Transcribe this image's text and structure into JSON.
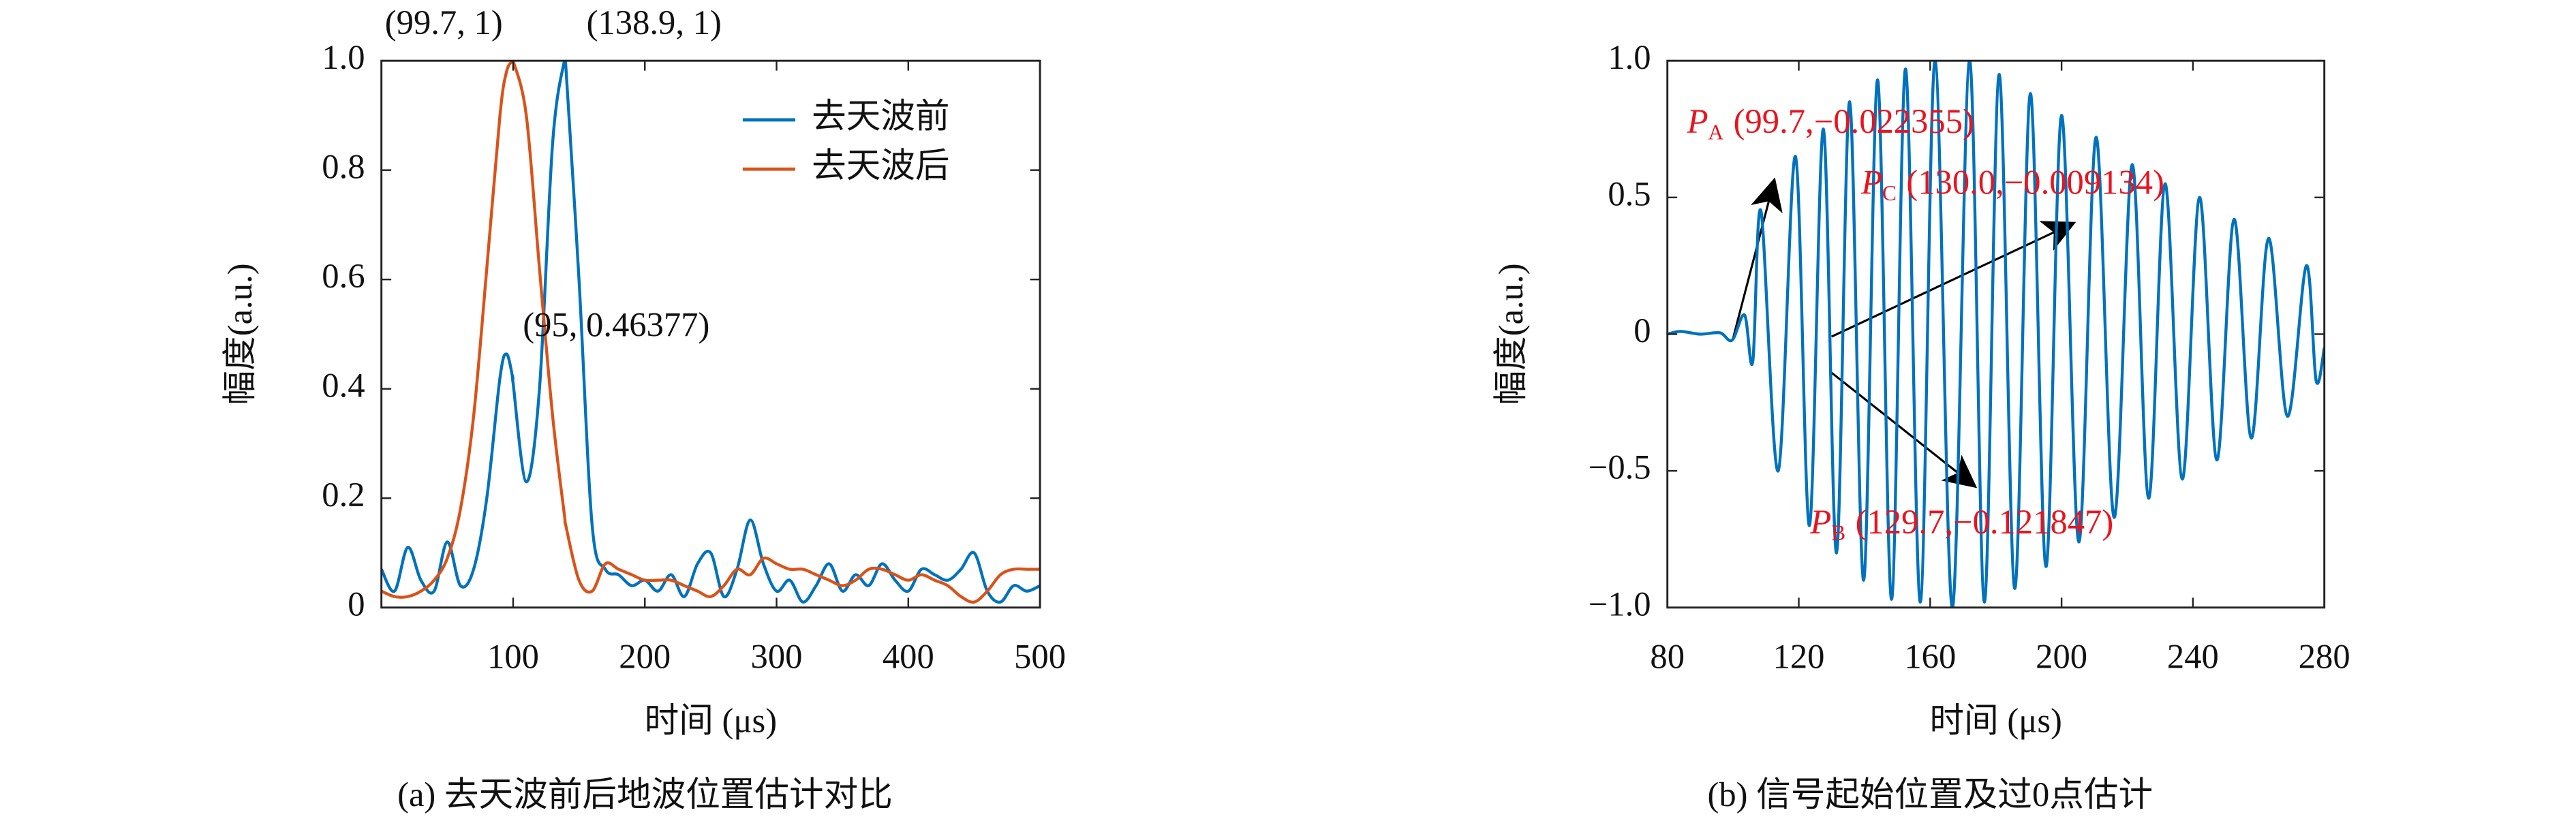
{
  "chart_data": [
    {
      "type": "line",
      "caption": "(a) 去天波前后地波位置估计对比",
      "xlabel": "时间 (μs)",
      "ylabel": "幅度(a.u.)",
      "x": [
        0,
        10,
        20,
        30,
        40,
        50,
        60,
        70,
        80,
        90,
        95,
        99.7,
        100,
        110,
        120,
        130,
        138.9,
        140,
        150,
        160,
        170,
        180,
        190,
        200,
        210,
        220,
        230,
        240,
        250,
        260,
        270,
        280,
        290,
        300,
        310,
        320,
        330,
        340,
        350,
        360,
        370,
        380,
        390,
        400,
        410,
        420,
        430,
        440,
        450,
        460,
        470,
        480,
        490,
        500
      ],
      "series": [
        {
          "name": "去天波前",
          "color": "#0072bd",
          "values": [
            0.07,
            0.03,
            0.11,
            0.05,
            0.03,
            0.12,
            0.04,
            0.07,
            0.2,
            0.42,
            0.46377,
            0.42,
            0.41,
            0.23,
            0.4,
            0.85,
            1,
            0.99,
            0.6,
            0.15,
            0.07,
            0.06,
            0.04,
            0.05,
            0.03,
            0.06,
            0.02,
            0.08,
            0.1,
            0.02,
            0.07,
            0.16,
            0.08,
            0.03,
            0.05,
            0.01,
            0.04,
            0.08,
            0.03,
            0.06,
            0.04,
            0.08,
            0.05,
            0.03,
            0.07,
            0.06,
            0.05,
            0.07,
            0.1,
            0.03,
            0.01,
            0.04,
            0.03,
            0.04
          ]
        },
        {
          "name": "去天波后",
          "color": "#d95319",
          "values": [
            0.03,
            0.02,
            0.02,
            0.03,
            0.05,
            0.09,
            0.18,
            0.35,
            0.62,
            0.9,
            0.98,
            1,
            1,
            0.9,
            0.62,
            0.35,
            0.17,
            0.15,
            0.05,
            0.03,
            0.08,
            0.07,
            0.06,
            0.05,
            0.05,
            0.05,
            0.04,
            0.03,
            0.02,
            0.04,
            0.07,
            0.06,
            0.09,
            0.08,
            0.07,
            0.07,
            0.06,
            0.05,
            0.04,
            0.05,
            0.07,
            0.07,
            0.06,
            0.05,
            0.06,
            0.05,
            0.04,
            0.02,
            0.01,
            0.03,
            0.06,
            0.07,
            0.07,
            0.07
          ]
        }
      ],
      "xlim": [
        0,
        500
      ],
      "xticks": [
        100,
        200,
        300,
        400,
        500
      ],
      "ylim": [
        0,
        1
      ],
      "yticks": [
        0,
        0.2,
        0.4,
        0.6,
        0.8,
        {
          "value": 1,
          "label": "1.0"
        }
      ],
      "legend": "upper right",
      "annotations": [
        {
          "text": "(99.7, 1)",
          "color": "#e8141e"
        },
        {
          "text": "(138.9, 1)",
          "color": "#1a1aff"
        },
        {
          "text": "(95, 0.46377)",
          "color": "#1a1aff"
        }
      ]
    },
    {
      "type": "line",
      "caption": "(b) 信号起始位置及过0点估计",
      "xlabel": "时间 (μs)",
      "ylabel": "幅度(a.u.)",
      "x": [
        80,
        84,
        90,
        96,
        99.7,
        103.5,
        106,
        108.5,
        113.75,
        119,
        123.25,
        127.5,
        131.5,
        135.5,
        139.75,
        144,
        148.25,
        152.5,
        157,
        161.5,
        166.75,
        172,
        176.5,
        181,
        185.75,
        190.5,
        195.25,
        200,
        205.25,
        210.5,
        216,
        221.5,
        226.5,
        231.5,
        236.75,
        242,
        247.25,
        252.5,
        257.75,
        263,
        268.75,
        274.5,
        277.5,
        280
      ],
      "series": [
        {
          "name": null,
          "color": "#0072bd",
          "values": [
            0,
            0.01,
            0,
            0.005,
            -0.022,
            0.07,
            -0.1,
            0.45,
            -0.5,
            0.65,
            -0.7,
            0.75,
            -0.8,
            0.85,
            -0.9,
            0.93,
            -0.97,
            0.97,
            -0.98,
            1,
            -1,
            1,
            -0.98,
            0.95,
            -0.93,
            0.88,
            -0.85,
            0.8,
            -0.76,
            0.72,
            -0.67,
            0.62,
            -0.6,
            0.55,
            -0.53,
            0.5,
            -0.46,
            0.42,
            -0.38,
            0.35,
            -0.3,
            0.25,
            -0.17,
            -0.05
          ]
        }
      ],
      "xlim": [
        80,
        280
      ],
      "xticks": [
        80,
        120,
        160,
        200,
        240,
        280
      ],
      "ylim": [
        -1,
        1
      ],
      "yticks": [
        {
          "value": -1,
          "label": "−1.0"
        },
        {
          "value": -0.5,
          "label": "−0.5"
        },
        0,
        0.5,
        {
          "value": 1,
          "label": "1.0"
        }
      ],
      "annotations": [
        {
          "symbol": "P",
          "subscript": "A",
          "text": "(99.7,−0.022355)",
          "color": "#e8141e"
        },
        {
          "symbol": "P",
          "subscript": "C",
          "text": "(130.0,−0.009134)",
          "color": "#e8141e"
        },
        {
          "symbol": "P",
          "subscript": "B",
          "text": "(129.7,−0.121847)",
          "color": "#e8141e"
        }
      ]
    }
  ]
}
